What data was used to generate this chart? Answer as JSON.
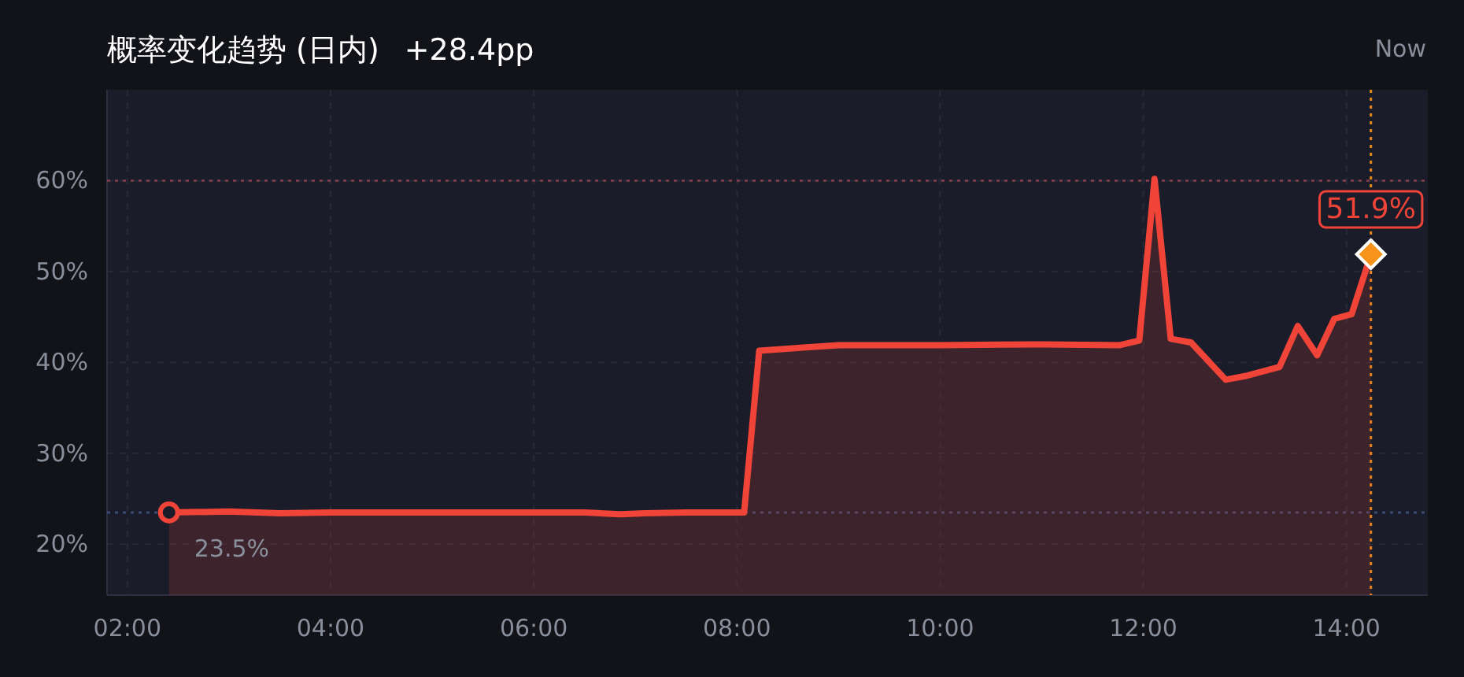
{
  "chart_data": {
    "type": "area",
    "title": "概率变化趋势 (日内)",
    "subtitle": "+28.4pp",
    "annotations": [
      "Now",
      {
        "text": "23.5%",
        "x": 2.41,
        "y": 23.5
      },
      {
        "text": "51.9%",
        "x": 14.24,
        "y": 51.9
      }
    ],
    "x": [
      2.41,
      3.0,
      3.5,
      4.0,
      4.5,
      5.0,
      5.5,
      6.0,
      6.5,
      6.85,
      7.1,
      7.5,
      8.07,
      8.22,
      9.0,
      10.0,
      11.0,
      11.77,
      11.96,
      12.11,
      12.27,
      12.47,
      12.81,
      13.0,
      13.34,
      13.52,
      13.71,
      13.88,
      14.05,
      14.24
    ],
    "series": [
      {
        "color": "#f04438",
        "values": [
          23.5,
          23.6,
          23.4,
          23.5,
          23.5,
          23.5,
          23.5,
          23.5,
          23.5,
          23.3,
          23.4,
          23.5,
          23.5,
          41.3,
          41.9,
          41.9,
          42.0,
          41.9,
          42.4,
          60.2,
          42.6,
          42.2,
          38.1,
          38.5,
          39.5,
          44.0,
          40.8,
          44.8,
          45.3,
          51.9
        ]
      }
    ],
    "xlim": [
      1.8,
      14.8
    ],
    "ylim": [
      14.4,
      70
    ],
    "xticks": [
      {
        "value": 2,
        "label": "02:00"
      },
      {
        "value": 4,
        "label": "04:00"
      },
      {
        "value": 6,
        "label": "06:00"
      },
      {
        "value": 8,
        "label": "08:00"
      },
      {
        "value": 10,
        "label": "10:00"
      },
      {
        "value": 12,
        "label": "12:00"
      },
      {
        "value": 14,
        "label": "14:00"
      }
    ],
    "yticks": [
      {
        "value": 20,
        "label": "20%"
      },
      {
        "value": 30,
        "label": "30%"
      },
      {
        "value": 40,
        "label": "40%"
      },
      {
        "value": 50,
        "label": "50%"
      },
      {
        "value": 60,
        "label": "60%"
      }
    ],
    "ref_lines": [
      {
        "axis": "y",
        "value": 60,
        "color": "#7a3a44",
        "line_style": "dotted"
      },
      {
        "axis": "y",
        "value": 23.5,
        "color": "#3a4a70",
        "line_style": "dotted"
      },
      {
        "axis": "x",
        "value": 14.24,
        "color": "#e8891a",
        "line_style": "dotted"
      }
    ],
    "grid": true,
    "line_style": "solid"
  }
}
